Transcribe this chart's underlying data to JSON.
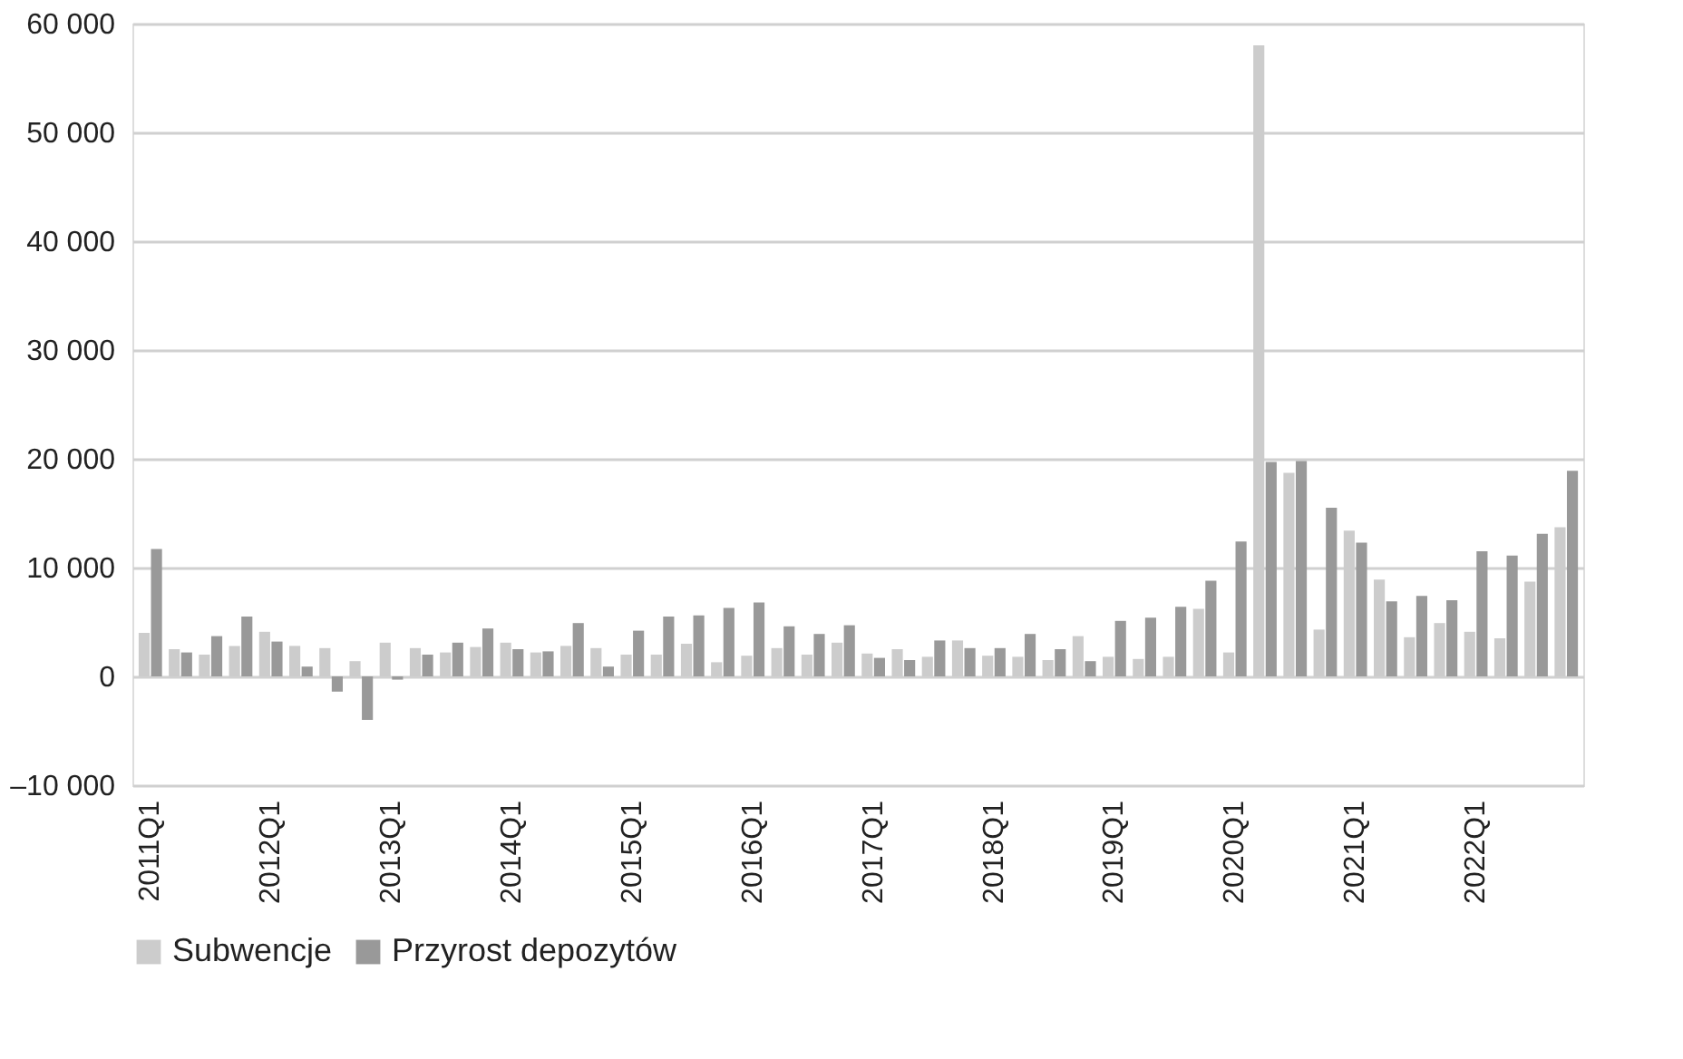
{
  "chart_data": {
    "type": "bar",
    "categories": [
      "2011Q1",
      null,
      null,
      null,
      "2012Q1",
      null,
      null,
      null,
      "2013Q1",
      null,
      null,
      null,
      "2014Q1",
      null,
      null,
      null,
      "2015Q1",
      null,
      null,
      null,
      "2016Q1",
      null,
      null,
      null,
      "2017Q1",
      null,
      null,
      null,
      "2018Q1",
      null,
      null,
      null,
      "2019Q1",
      null,
      null,
      null,
      "2020Q1",
      null,
      null,
      null,
      "2021Q1",
      null,
      null,
      null,
      "2022Q1",
      null,
      null,
      null
    ],
    "series": [
      {
        "name": "Subwencje",
        "color": "#cccccc",
        "values": [
          4000,
          2500,
          2000,
          2800,
          4100,
          2800,
          2600,
          1400,
          3100,
          2600,
          2200,
          2700,
          3100,
          2200,
          2800,
          2600,
          2000,
          2000,
          3000,
          1300,
          1900,
          2600,
          2000,
          3100,
          2100,
          2500,
          1800,
          3300,
          1900,
          1800,
          1500,
          3700,
          1800,
          1600,
          1800,
          6200,
          2200,
          58000,
          18700,
          4300,
          13400,
          8900,
          3600,
          4900,
          4100,
          3500,
          8700,
          13700
        ]
      },
      {
        "name": "Przyrost depozytów",
        "color": "#999999",
        "values": [
          11700,
          2200,
          3700,
          5500,
          3200,
          900,
          -1400,
          -4000,
          -300,
          2000,
          3100,
          4400,
          2500,
          2300,
          4900,
          900,
          4200,
          5500,
          5600,
          6300,
          6800,
          4600,
          3900,
          4700,
          1700,
          1500,
          3300,
          2600,
          2600,
          3900,
          2500,
          1400,
          5100,
          5400,
          6400,
          8800,
          12400,
          19700,
          19800,
          15500,
          12300,
          6900,
          7400,
          7000,
          11500,
          11100,
          13100,
          18900
        ]
      }
    ],
    "ylim": [
      -10000,
      60000
    ],
    "yticks": [
      {
        "value": -10000,
        "label": "–10 000"
      },
      0,
      {
        "value": 10000,
        "label": "10 000"
      },
      {
        "value": 20000,
        "label": "20 000"
      },
      {
        "value": 30000,
        "label": "30 000"
      },
      {
        "value": 40000,
        "label": "40 000"
      },
      {
        "value": 50000,
        "label": "50 000"
      },
      {
        "value": 60000,
        "label": "60 000"
      }
    ],
    "grid": "y",
    "legend": "bottom"
  }
}
